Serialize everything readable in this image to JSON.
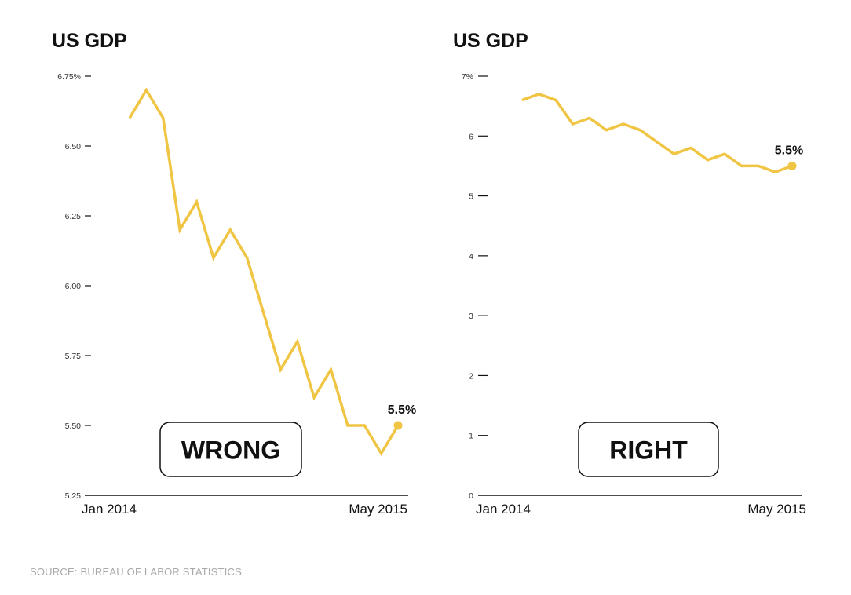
{
  "source": "SOURCE: BUREAU OF LABOR STATISTICS",
  "colors": {
    "line": "#f0c543",
    "axis": "#111111",
    "text": "#111111",
    "source": "#a9a9a9"
  },
  "chart_data": [
    {
      "type": "line",
      "title": "US GDP",
      "xlabel": "",
      "ylabel": "",
      "x_start_label": "Jan 2014",
      "x_end_label": "May 2015",
      "ylim": [
        5.25,
        6.75
      ],
      "yticks": [
        6.75,
        6.5,
        6.25,
        6.0,
        5.75,
        5.5,
        5.25
      ],
      "ytick_labels": [
        "6.75%",
        "6.50",
        "6.25",
        "6.00",
        "5.75",
        "5.50",
        "5.25"
      ],
      "values": [
        6.6,
        6.7,
        6.6,
        6.2,
        6.3,
        6.1,
        6.2,
        6.1,
        5.9,
        5.7,
        5.8,
        5.6,
        5.7,
        5.5,
        5.5,
        5.4,
        5.5
      ],
      "end_label": "5.5%",
      "verdict": "WRONG"
    },
    {
      "type": "line",
      "title": "US GDP",
      "xlabel": "",
      "ylabel": "",
      "x_start_label": "Jan 2014",
      "x_end_label": "May 2015",
      "ylim": [
        0,
        7
      ],
      "yticks": [
        7,
        6,
        5,
        4,
        3,
        2,
        1,
        0
      ],
      "ytick_labels": [
        "7%",
        "6",
        "5",
        "4",
        "3",
        "2",
        "1",
        "0"
      ],
      "values": [
        6.6,
        6.7,
        6.6,
        6.2,
        6.3,
        6.1,
        6.2,
        6.1,
        5.9,
        5.7,
        5.8,
        5.6,
        5.7,
        5.5,
        5.5,
        5.4,
        5.5
      ],
      "end_label": "5.5%",
      "verdict": "RIGHT"
    }
  ]
}
